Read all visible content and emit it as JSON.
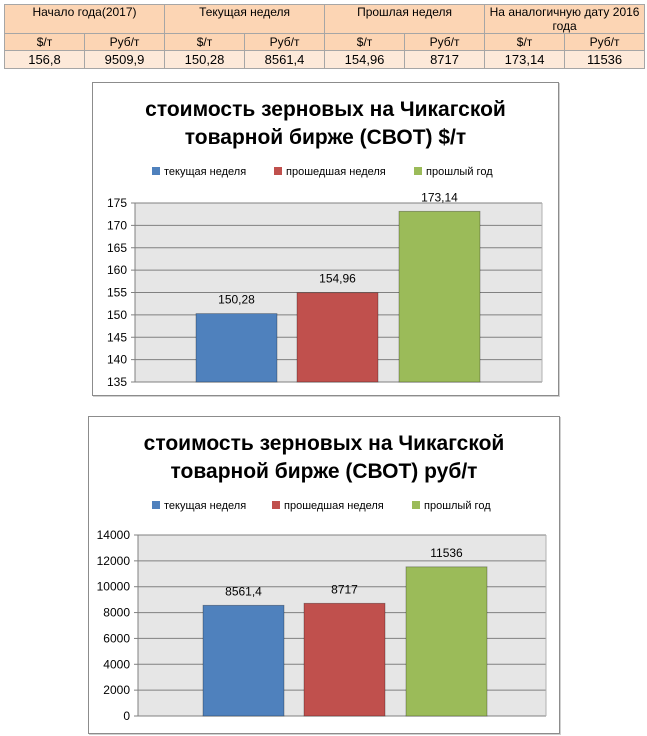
{
  "table": {
    "headers": [
      "Начало года(2017)",
      "Текущая неделя",
      "Прошлая неделя",
      "На аналогичную дату 2016 года"
    ],
    "units": [
      "$/т",
      "Руб/т",
      "$/т",
      "Руб/т",
      "$/т",
      "Руб/т",
      "$/т",
      "Руб/т"
    ],
    "values": [
      "156,8",
      "9509,9",
      "150,28",
      "8561,4",
      "154,96",
      "8717",
      "173,14",
      "11536"
    ]
  },
  "colors": {
    "series": [
      "#4f81bd",
      "#c0504d",
      "#9bbb59"
    ],
    "plot_bg": "#e6e6e6",
    "grid": "#808080"
  },
  "chart_data": [
    {
      "type": "bar",
      "title_lines": [
        "стоимость зерновых на Чикагской",
        "товарной бирже (СВОТ) $/т"
      ],
      "legend": [
        "текущая неделя",
        "прошедшая неделя",
        "прошлый год"
      ],
      "values": [
        150.28,
        154.96,
        173.14
      ],
      "labels": [
        "150,28",
        "154,96",
        "173,14"
      ],
      "ylim": [
        135,
        175
      ],
      "yticks": [
        135,
        140,
        145,
        150,
        155,
        160,
        165,
        170,
        175
      ],
      "legend_position": "top",
      "grid": true
    },
    {
      "type": "bar",
      "title_lines": [
        "стоимость зерновых на Чикагской",
        "товарной бирже (СВОТ) руб/т"
      ],
      "legend": [
        "текущая неделя",
        "прошедшая неделя",
        "прошлый год"
      ],
      "values": [
        8561.4,
        8717,
        11536
      ],
      "labels": [
        "8561,4",
        "8717",
        "11536"
      ],
      "ylim": [
        0,
        14000
      ],
      "yticks": [
        0,
        2000,
        4000,
        6000,
        8000,
        10000,
        12000,
        14000
      ],
      "legend_position": "top",
      "grid": true
    }
  ]
}
